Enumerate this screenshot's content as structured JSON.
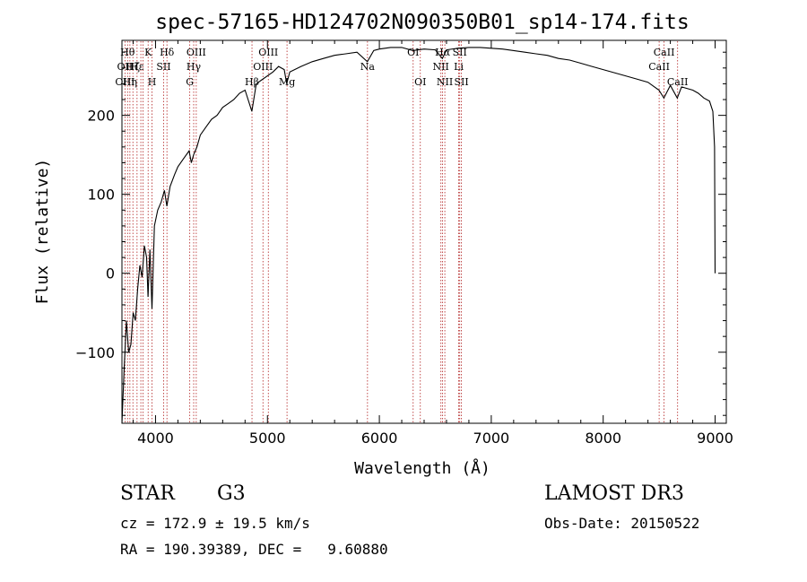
{
  "chart_data": {
    "type": "line",
    "title": "spec-57165-HD124702N090350B01_sp14-174.fits",
    "xlabel": "Wavelength (Å)",
    "ylabel": "Flux (relative)",
    "xlim": [
      3700,
      9100
    ],
    "ylim": [
      -190,
      295
    ],
    "x_ticks": [
      4000,
      5000,
      6000,
      7000,
      8000,
      9000
    ],
    "y_ticks": [
      -100,
      0,
      100,
      200
    ],
    "grid": false,
    "legend": "none",
    "line_color": "#000000",
    "series": [
      {
        "x": [
          3700,
          3720,
          3740,
          3760,
          3780,
          3800,
          3820,
          3840,
          3860,
          3880,
          3900,
          3920,
          3933,
          3950,
          3968,
          3990,
          4020,
          4050,
          4080,
          4101,
          4130,
          4170,
          4200,
          4250,
          4300,
          4320,
          4340,
          4370,
          4400,
          4450,
          4500,
          4550,
          4600,
          4650,
          4700,
          4750,
          4800,
          4861,
          4900,
          4950,
          5000,
          5050,
          5100,
          5150,
          5172,
          5200,
          5300,
          5400,
          5500,
          5600,
          5700,
          5800,
          5893,
          5950,
          6000,
          6100,
          6200,
          6300,
          6400,
          6500,
          6563,
          6600,
          6700,
          6800,
          6900,
          7000,
          7100,
          7200,
          7300,
          7400,
          7500,
          7600,
          7700,
          7800,
          7900,
          8000,
          8100,
          8200,
          8300,
          8400,
          8498,
          8542,
          8600,
          8662,
          8700,
          8800,
          8850,
          8900,
          8950,
          8980,
          8995,
          9000
        ],
        "y": [
          -190,
          -120,
          -60,
          -100,
          -90,
          -50,
          -60,
          -20,
          10,
          -5,
          35,
          20,
          -30,
          30,
          -45,
          60,
          80,
          90,
          105,
          85,
          110,
          125,
          135,
          145,
          155,
          140,
          150,
          160,
          175,
          185,
          195,
          200,
          210,
          215,
          220,
          228,
          232,
          205,
          240,
          245,
          250,
          255,
          262,
          258,
          240,
          255,
          262,
          268,
          272,
          276,
          278,
          280,
          268,
          282,
          284,
          286,
          286,
          282,
          284,
          283,
          272,
          283,
          285,
          286,
          286,
          285,
          284,
          282,
          280,
          278,
          276,
          272,
          270,
          266,
          262,
          258,
          254,
          250,
          246,
          242,
          232,
          222,
          238,
          222,
          236,
          232,
          228,
          222,
          218,
          205,
          160,
          0
        ]
      }
    ],
    "lines": [
      {
        "x": 3727,
        "labels": [
          {
            "text": "OII",
            "row": 2
          },
          {
            "text": "OIII",
            "row": 3
          }
        ]
      },
      {
        "x": 3750,
        "labels": [
          {
            "text": "Hθ",
            "row": 1
          }
        ]
      },
      {
        "x": 3771,
        "labels": [
          {
            "text": "Hη",
            "row": 3
          }
        ]
      },
      {
        "x": 3798,
        "labels": [
          {
            "text": "Hζ",
            "row": 2
          }
        ]
      },
      {
        "x": 3835,
        "labels": [
          {
            "text": "Hε",
            "row": 2
          }
        ]
      },
      {
        "x": 3869,
        "labels": []
      },
      {
        "x": 3889,
        "labels": []
      },
      {
        "x": 3934,
        "labels": [
          {
            "text": "K",
            "row": 1
          }
        ]
      },
      {
        "x": 3969,
        "labels": [
          {
            "text": "H",
            "row": 3
          }
        ]
      },
      {
        "x": 4072,
        "labels": [
          {
            "text": "SII",
            "row": 2
          }
        ]
      },
      {
        "x": 4102,
        "labels": [
          {
            "text": "Hδ",
            "row": 1
          }
        ]
      },
      {
        "x": 4306,
        "labels": [
          {
            "text": "G",
            "row": 3
          }
        ]
      },
      {
        "x": 4341,
        "labels": [
          {
            "text": "Hγ",
            "row": 2
          }
        ]
      },
      {
        "x": 4364,
        "labels": [
          {
            "text": "OIII",
            "row": 1
          }
        ]
      },
      {
        "x": 4862,
        "labels": [
          {
            "text": "Hβ",
            "row": 3
          }
        ]
      },
      {
        "x": 4960,
        "labels": [
          {
            "text": "OIII",
            "row": 2
          }
        ]
      },
      {
        "x": 5008,
        "labels": [
          {
            "text": "OIII",
            "row": 1
          }
        ]
      },
      {
        "x": 5175,
        "labels": [
          {
            "text": "Mg",
            "row": 3
          }
        ]
      },
      {
        "x": 5894,
        "labels": [
          {
            "text": "Na",
            "row": 2
          }
        ]
      },
      {
        "x": 6302,
        "labels": [
          {
            "text": "OI",
            "row": 1
          }
        ]
      },
      {
        "x": 6366,
        "labels": [
          {
            "text": "OI",
            "row": 3
          }
        ]
      },
      {
        "x": 6550,
        "labels": [
          {
            "text": "NII",
            "row": 2
          }
        ]
      },
      {
        "x": 6565,
        "labels": [
          {
            "text": "Hα",
            "row": 1
          }
        ]
      },
      {
        "x": 6585,
        "labels": [
          {
            "text": "NII",
            "row": 3
          }
        ]
      },
      {
        "x": 6709,
        "labels": [
          {
            "text": "Li",
            "row": 2
          }
        ]
      },
      {
        "x": 6718,
        "labels": [
          {
            "text": "SII",
            "row": 1
          }
        ]
      },
      {
        "x": 6733,
        "labels": [
          {
            "text": "SII",
            "row": 3
          }
        ]
      },
      {
        "x": 8500,
        "labels": [
          {
            "text": "CaII",
            "row": 2
          }
        ]
      },
      {
        "x": 8544,
        "labels": [
          {
            "text": "CaII",
            "row": 1
          }
        ]
      },
      {
        "x": 8665,
        "labels": [
          {
            "text": "CaII",
            "row": 3
          }
        ]
      }
    ]
  },
  "info": {
    "object_class": "STAR",
    "subclass": "G3",
    "survey": "LAMOST DR3",
    "cz": "cz = 172.9 ± 19.5 km/s",
    "obs_date": "Obs-Date: 20150522",
    "coords": "RA = 190.39389, DEC =   9.60880"
  }
}
